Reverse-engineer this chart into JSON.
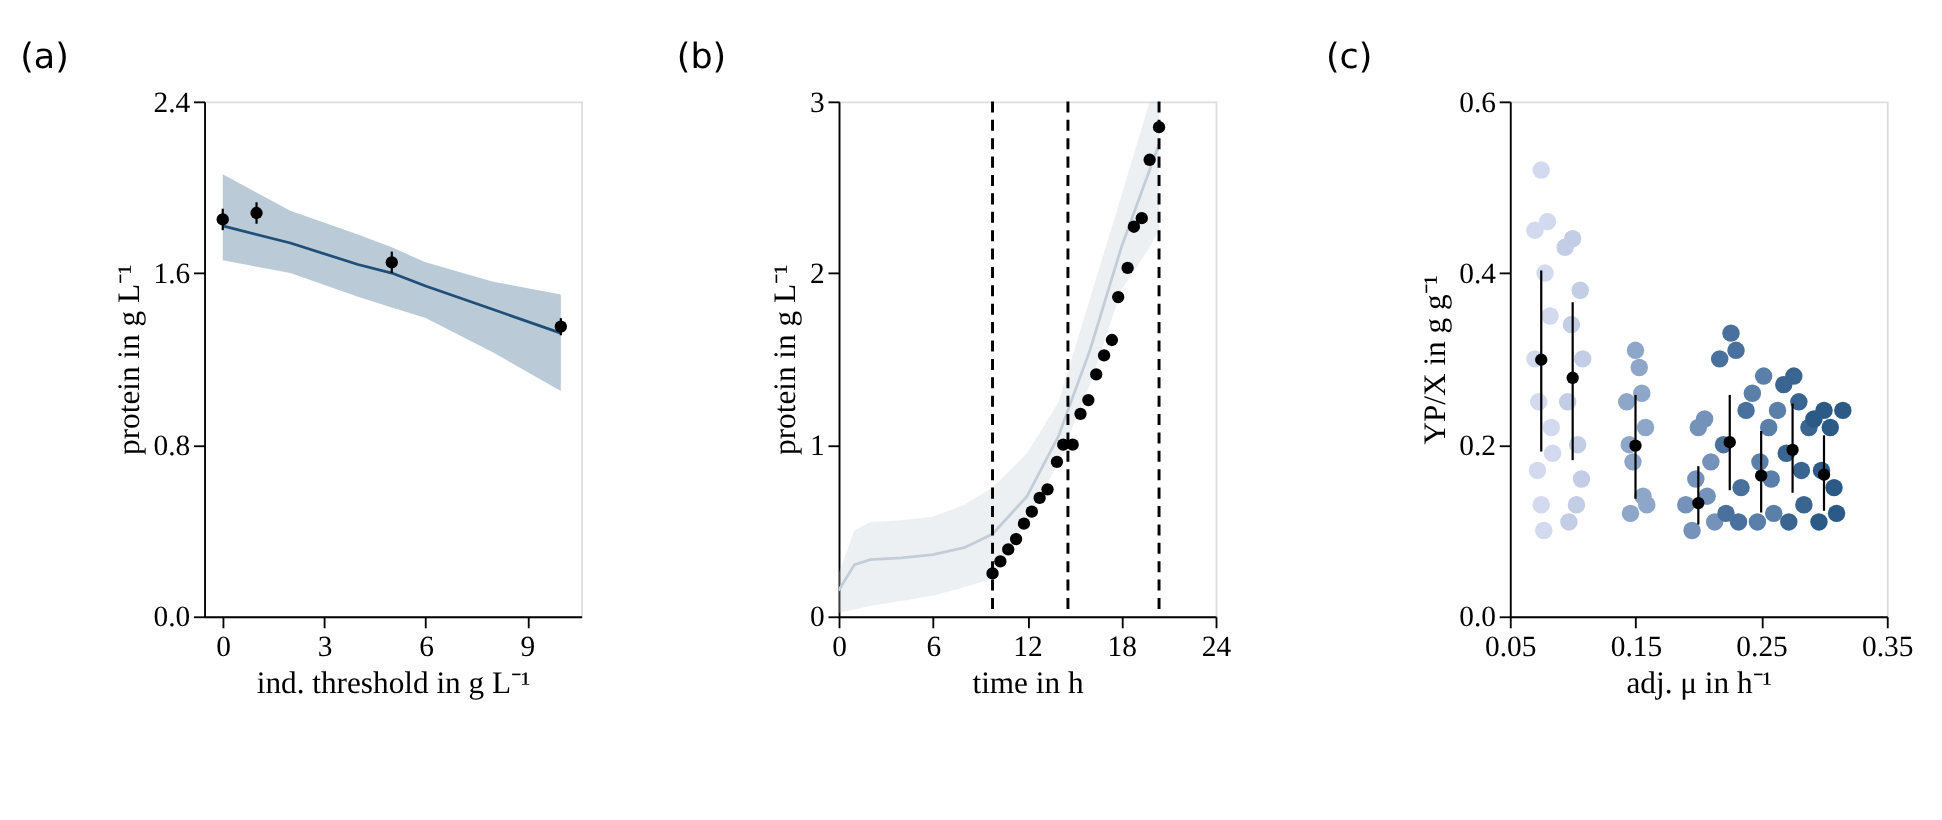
{
  "chart_data": [
    {
      "type": "scatter",
      "title": "(a)",
      "xlabel": "ind. threshold in g L⁻¹",
      "ylabel": "protein in g L⁻¹",
      "xlim": [
        -0.55,
        10.6
      ],
      "xticks": [
        0,
        3,
        6,
        9
      ],
      "ylim": [
        0,
        2.4
      ],
      "yticks": [
        {
          "value": 0,
          "label": "0.0"
        },
        0.8,
        1.6,
        2.4
      ],
      "grid": false,
      "series": [
        {
          "type": "line",
          "marker": "none",
          "line_style": "solid",
          "color": "#1f4e79",
          "x": [
            0,
            2,
            4,
            5,
            6,
            8,
            10
          ],
          "values": [
            1.82,
            1.74,
            1.64,
            1.6,
            1.54,
            1.43,
            1.32
          ],
          "lower": [
            1.66,
            1.6,
            1.49,
            1.44,
            1.39,
            1.23,
            1.05
          ],
          "upper": [
            2.06,
            1.89,
            1.78,
            1.72,
            1.65,
            1.56,
            1.5
          ]
        },
        {
          "marker": "circle",
          "color": "#000000",
          "x": [
            0,
            1,
            5,
            10
          ],
          "values": [
            1.85,
            1.88,
            1.65,
            1.35
          ],
          "errors": [
            0.05,
            0.05,
            0.05,
            0.04
          ]
        }
      ]
    },
    {
      "type": "scatter",
      "title": "(b)",
      "xlabel": "time in h",
      "ylabel": "protein in g L⁻¹",
      "xlim": [
        0,
        24
      ],
      "xticks": [
        0,
        6,
        12,
        18,
        24
      ],
      "ylim": [
        0,
        3
      ],
      "yticks": [
        0,
        1,
        2,
        3
      ],
      "grid": false,
      "ref_lines": [
        {
          "axis": "x",
          "value": 9.8,
          "color": "#000000",
          "line_style": "dashed"
        },
        {
          "axis": "x",
          "value": 14.6,
          "color": "#000000",
          "line_style": "dashed"
        },
        {
          "axis": "x",
          "value": 20.4,
          "color": "#000000",
          "line_style": "dashed"
        }
      ],
      "series": [
        {
          "type": "line",
          "marker": "none",
          "line_style": "solid",
          "color": "#c3cdd8",
          "x": [
            0,
            1,
            2,
            4,
            6,
            8,
            9.8,
            12,
            14,
            16,
            18,
            19.8,
            20.4
          ],
          "values": [
            0.15,
            0.3,
            0.33,
            0.34,
            0.36,
            0.4,
            0.48,
            0.7,
            1.05,
            1.55,
            2.15,
            2.6,
            2.75
          ],
          "lower": [
            0.02,
            0.04,
            0.06,
            0.09,
            0.12,
            0.17,
            0.22,
            0.55,
            0.9,
            1.35,
            1.9,
            2.15,
            2.25
          ],
          "upper": [
            0.25,
            0.5,
            0.55,
            0.56,
            0.58,
            0.65,
            0.75,
            0.95,
            1.25,
            1.85,
            2.45,
            3.0,
            3.0
          ]
        },
        {
          "marker": "circle",
          "color": "#000000",
          "x": [
            9.8,
            10.3,
            10.8,
            11.3,
            11.8,
            12.3,
            12.8,
            13.3,
            13.9,
            14.3,
            14.9,
            15.4,
            15.9,
            16.4,
            16.9,
            17.4,
            17.8,
            18.4,
            18.8,
            19.3,
            19.8,
            20.4
          ],
          "values": [
            0.25,
            0.32,
            0.39,
            0.45,
            0.54,
            0.61,
            0.69,
            0.74,
            0.9,
            1.0,
            1.0,
            1.18,
            1.26,
            1.41,
            1.52,
            1.61,
            1.86,
            2.03,
            2.27,
            2.32,
            2.66,
            2.85
          ]
        }
      ]
    },
    {
      "type": "scatter",
      "title": "(c)",
      "xlabel": "adj. μ in h⁻¹",
      "ylabel": "YP/X in g g⁻¹",
      "xlim": [
        0.05,
        0.35
      ],
      "xticks": [
        0.05,
        0.15,
        0.25,
        0.35
      ],
      "ylim": [
        0,
        0.6
      ],
      "yticks": [
        {
          "value": 0,
          "label": "0.0"
        },
        0.2,
        0.4,
        0.6
      ],
      "grid": false,
      "series": [
        {
          "marker": "circle",
          "color": "#d3d9ee",
          "x": [
            0.07,
            0.072,
            0.075,
            0.077,
            0.08,
            0.083,
            0.07,
            0.082,
            0.075,
            0.078,
            0.073,
            0.084
          ],
          "values": [
            0.45,
            0.17,
            0.52,
            0.1,
            0.46,
            0.22,
            0.3,
            0.35,
            0.13,
            0.4,
            0.25,
            0.19
          ]
        },
        {
          "marker": "circle",
          "color": "#c4cde6",
          "x": [
            0.094,
            0.097,
            0.1,
            0.103,
            0.106,
            0.108,
            0.096,
            0.104,
            0.099,
            0.107
          ],
          "values": [
            0.43,
            0.11,
            0.44,
            0.13,
            0.38,
            0.3,
            0.25,
            0.2,
            0.34,
            0.16
          ]
        },
        {
          "marker": "circle",
          "color": "#8ea7c8",
          "x": [
            0.143,
            0.146,
            0.15,
            0.153,
            0.156,
            0.158,
            0.148,
            0.155,
            0.145,
            0.159
          ],
          "values": [
            0.25,
            0.12,
            0.31,
            0.29,
            0.14,
            0.22,
            0.18,
            0.26,
            0.2,
            0.13
          ]
        },
        {
          "marker": "circle",
          "color": "#7592ba",
          "x": [
            0.19,
            0.195,
            0.2,
            0.205,
            0.21,
            0.213,
            0.198,
            0.207
          ],
          "values": [
            0.13,
            0.1,
            0.22,
            0.23,
            0.18,
            0.11,
            0.16,
            0.14
          ]
        },
        {
          "marker": "circle",
          "color": "#4a719e",
          "x": [
            0.217,
            0.222,
            0.226,
            0.23,
            0.234,
            0.238,
            0.22,
            0.232
          ],
          "values": [
            0.3,
            0.12,
            0.33,
            0.31,
            0.15,
            0.24,
            0.2,
            0.11
          ]
        },
        {
          "marker": "circle",
          "color": "#5a7fa8",
          "x": [
            0.243,
            0.247,
            0.252,
            0.256,
            0.26,
            0.263,
            0.249,
            0.258
          ],
          "values": [
            0.26,
            0.11,
            0.28,
            0.22,
            0.12,
            0.24,
            0.18,
            0.16
          ]
        },
        {
          "marker": "circle",
          "color": "#3a6591",
          "x": [
            0.268,
            0.272,
            0.276,
            0.28,
            0.284,
            0.288,
            0.27,
            0.282
          ],
          "values": [
            0.27,
            0.11,
            0.28,
            0.25,
            0.13,
            0.22,
            0.19,
            0.17
          ]
        },
        {
          "marker": "circle",
          "color": "#2c5a86",
          "x": [
            0.292,
            0.296,
            0.3,
            0.305,
            0.31,
            0.315,
            0.298,
            0.308
          ],
          "values": [
            0.23,
            0.11,
            0.24,
            0.22,
            0.12,
            0.24,
            0.17,
            0.15
          ]
        },
        {
          "marker": "circle",
          "color": "#000000",
          "x": [
            0.075,
            0.1,
            0.15,
            0.2,
            0.225,
            0.25,
            0.275,
            0.3
          ],
          "values": [
            0.299,
            0.278,
            0.199,
            0.132,
            0.203,
            0.164,
            0.194,
            0.165
          ],
          "errors": [
            [
              0.192,
              0.403
            ],
            [
              0.182,
              0.366
            ],
            [
              0.137,
              0.258
            ],
            [
              0.107,
              0.175
            ],
            [
              0.147,
              0.258
            ],
            [
              0.121,
              0.216
            ],
            [
              0.144,
              0.248
            ],
            [
              0.123,
              0.211
            ]
          ]
        }
      ]
    }
  ]
}
